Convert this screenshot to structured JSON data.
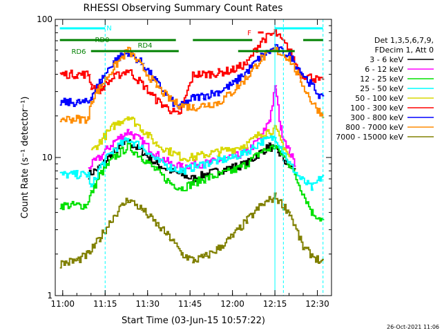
{
  "chart_data": {
    "type": "line",
    "title": "RHESSI Observing Summary Count Rates",
    "xlabel": "Start Time (03-Jun-15 10:57:22)",
    "ylabel": "Count Rate (s⁻¹ detector⁻¹)",
    "yscale": "log",
    "ylim": [
      1,
      100
    ],
    "xlim": [
      "10:57:22",
      "12:35:00"
    ],
    "x_ticks": [
      "11:00",
      "11:15",
      "11:30",
      "11:45",
      "12:00",
      "12:15",
      "12:30"
    ],
    "y_ticks": [
      "1",
      "10",
      "100"
    ],
    "footer": "26-Oct-2021 11:06",
    "legend": {
      "placement": "right",
      "header": [
        "Det 1,3,5,6,7,9,",
        "FDecim 1, Att 0"
      ],
      "entries": [
        {
          "label": "3 - 6 keV",
          "color": "#000000"
        },
        {
          "label": "6 - 12 keV",
          "color": "#ff00ff"
        },
        {
          "label": "12 - 25 keV",
          "color": "#00e000"
        },
        {
          "label": "25 - 50 keV",
          "color": "#00ffff"
        },
        {
          "label": "50 - 100 keV",
          "color": "#d8d800"
        },
        {
          "label": "100 - 300 keV",
          "color": "#ff0000"
        },
        {
          "label": "300 - 800 keV",
          "color": "#0000ff"
        },
        {
          "label": "800 - 7000 keV",
          "color": "#ff8c00"
        },
        {
          "label": "7000 - 15000 keV",
          "color": "#808000"
        }
      ]
    },
    "flag_labels": [
      {
        "text": "N",
        "color": "#00ffff"
      },
      {
        "text": "RD0",
        "color": "#008000"
      },
      {
        "text": "RD4",
        "color": "#008000"
      },
      {
        "text": "RD6",
        "color": "#008000"
      },
      {
        "text": "F",
        "color": "#ff0000"
      }
    ],
    "flag_bars": [
      {
        "name": "N",
        "color": "#00ffff",
        "segments": [
          [
            "10:59",
            "11:15"
          ],
          [
            "12:15",
            "12:32"
          ]
        ]
      },
      {
        "name": "RD0",
        "color": "#008000",
        "segments": [
          [
            "10:59",
            "11:40"
          ],
          [
            "11:46",
            "12:07"
          ],
          [
            "12:25",
            "12:32"
          ]
        ]
      },
      {
        "name": "RD6",
        "color": "#008000",
        "segments": [
          [
            "11:10",
            "11:41"
          ],
          [
            "12:02",
            "12:22"
          ]
        ]
      },
      {
        "name": "F",
        "color": "#ff0000",
        "segments": [
          [
            "12:09",
            "12:11"
          ]
        ]
      }
    ],
    "vlines": [
      {
        "time": "11:15",
        "style": "dashed",
        "color": "#00ffff"
      },
      {
        "time": "12:15",
        "style": "solid",
        "color": "#00ffff"
      },
      {
        "time": "12:18",
        "style": "dashed",
        "color": "#00ffff"
      },
      {
        "time": "12:32",
        "style": "dashed",
        "color": "#00ffff"
      }
    ],
    "series": [
      {
        "name": "3 - 6 keV",
        "color": "#000000",
        "x": [
          "11:09",
          "11:13",
          "11:18",
          "11:23",
          "11:28",
          "11:33",
          "11:38",
          "11:42",
          "11:46",
          "11:50",
          "11:55",
          "12:00",
          "12:05",
          "12:10",
          "12:13",
          "12:16",
          "12:19",
          "12:22"
        ],
        "y": [
          7.5,
          8.5,
          11,
          13,
          11,
          9,
          8,
          7.5,
          7,
          7.5,
          8,
          8.5,
          9,
          11,
          12,
          11,
          9,
          8
        ]
      },
      {
        "name": "6 - 12 keV",
        "color": "#ff00ff",
        "x": [
          "11:09",
          "11:13",
          "11:18",
          "11:23",
          "11:28",
          "11:33",
          "11:38",
          "11:42",
          "11:46",
          "11:50",
          "11:55",
          "12:00",
          "12:05",
          "12:10",
          "12:13",
          "12:15",
          "12:17",
          "12:20",
          "12:22"
        ],
        "y": [
          8.5,
          10,
          13,
          15.5,
          13,
          10.5,
          9,
          8.5,
          9,
          9,
          9.5,
          10,
          11,
          14,
          19,
          32,
          16,
          11,
          9
        ]
      },
      {
        "name": "12 - 25 keV",
        "color": "#00e000",
        "x": [
          "10:59",
          "11:05",
          "11:08",
          "11:10",
          "11:13",
          "11:18",
          "11:23",
          "11:28",
          "11:33",
          "11:38",
          "11:42",
          "11:46",
          "11:50",
          "11:55",
          "12:00",
          "12:05",
          "12:10",
          "12:15",
          "12:20",
          "12:24",
          "12:28",
          "12:32"
        ],
        "y": [
          4.5,
          4.5,
          4.5,
          5.5,
          7.5,
          10,
          12,
          10,
          8,
          6.5,
          6,
          6.5,
          7,
          7.5,
          8,
          9,
          11,
          12,
          9,
          6,
          4,
          3.5
        ]
      },
      {
        "name": "25 - 50 keV",
        "color": "#00ffff",
        "x": [
          "10:59",
          "11:05",
          "11:09",
          "11:10",
          "11:13",
          "11:18",
          "11:23",
          "11:28",
          "11:33",
          "11:38",
          "11:42",
          "11:46",
          "11:50",
          "11:55",
          "12:00",
          "12:05",
          "12:10",
          "12:15",
          "12:18",
          "12:20",
          "12:24",
          "12:28",
          "12:32"
        ],
        "y": [
          7.5,
          7.5,
          7.5,
          6,
          8.5,
          11.5,
          13.5,
          12,
          9.5,
          8.5,
          8,
          8.5,
          9,
          9.5,
          10,
          11,
          13,
          14,
          11,
          9,
          7,
          6,
          7.5
        ]
      },
      {
        "name": "50 - 100 keV",
        "color": "#d8d800",
        "x": [
          "11:10",
          "11:13",
          "11:18",
          "11:23",
          "11:28",
          "11:33",
          "11:38",
          "11:42",
          "11:46",
          "11:50",
          "11:55",
          "12:00",
          "12:05",
          "12:10",
          "12:15",
          "12:18",
          "12:20"
        ],
        "y": [
          11,
          13,
          17,
          20,
          16,
          12.5,
          11,
          10,
          10,
          10.5,
          11,
          11.5,
          12.5,
          15,
          16,
          12,
          10
        ]
      },
      {
        "name": "100 - 300 keV",
        "color": "#ff0000",
        "x": [
          "10:59",
          "11:05",
          "11:09",
          "11:10",
          "11:13",
          "11:18",
          "11:23",
          "11:28",
          "11:33",
          "11:38",
          "11:41",
          "11:46",
          "11:50",
          "11:55",
          "12:00",
          "12:05",
          "12:10",
          "12:15",
          "12:20",
          "12:24",
          "12:28",
          "12:32"
        ],
        "y": [
          40,
          40,
          40,
          33,
          31,
          38,
          43,
          34,
          26,
          22,
          20,
          40,
          40,
          41,
          43,
          48,
          70,
          80,
          60,
          40,
          38,
          35
        ]
      },
      {
        "name": "300 - 800 keV",
        "color": "#0000ff",
        "x": [
          "10:59",
          "11:05",
          "11:09",
          "11:10",
          "11:13",
          "11:18",
          "11:23",
          "11:28",
          "11:33",
          "11:38",
          "11:41",
          "11:46",
          "11:50",
          "11:55",
          "12:00",
          "12:05",
          "12:10",
          "12:15",
          "12:20",
          "12:24",
          "12:28",
          "12:32"
        ],
        "y": [
          25,
          25,
          25,
          28,
          35,
          50,
          58,
          48,
          35,
          26,
          23,
          27,
          28,
          30,
          34,
          42,
          54,
          62,
          55,
          42,
          33,
          26
        ]
      },
      {
        "name": "800 - 7000 keV",
        "color": "#ff8c00",
        "x": [
          "10:59",
          "11:05",
          "11:09",
          "11:10",
          "11:13",
          "11:18",
          "11:23",
          "11:28",
          "11:33",
          "11:38",
          "11:41",
          "11:46",
          "11:50",
          "11:55",
          "12:00",
          "12:05",
          "12:10",
          "12:15",
          "12:20",
          "12:24",
          "12:28",
          "12:32"
        ],
        "y": [
          19,
          19,
          19,
          26,
          32,
          45,
          60,
          45,
          33,
          26,
          24,
          23,
          24,
          25,
          30,
          38,
          52,
          60,
          52,
          36,
          25,
          20
        ]
      },
      {
        "name": "7000 - 15000 keV",
        "color": "#808000",
        "x": [
          "10:59",
          "11:05",
          "11:09",
          "11:13",
          "11:18",
          "11:23",
          "11:28",
          "11:33",
          "11:38",
          "11:42",
          "11:46",
          "11:50",
          "11:55",
          "12:00",
          "12:05",
          "12:10",
          "12:15",
          "12:20",
          "12:25",
          "12:32"
        ],
        "y": [
          1.7,
          1.8,
          2.0,
          2.6,
          3.8,
          5.0,
          4.2,
          3.3,
          2.6,
          2.0,
          1.8,
          1.9,
          2.2,
          2.7,
          3.5,
          4.5,
          5.2,
          4.0,
          2.2,
          1.7
        ]
      }
    ]
  }
}
